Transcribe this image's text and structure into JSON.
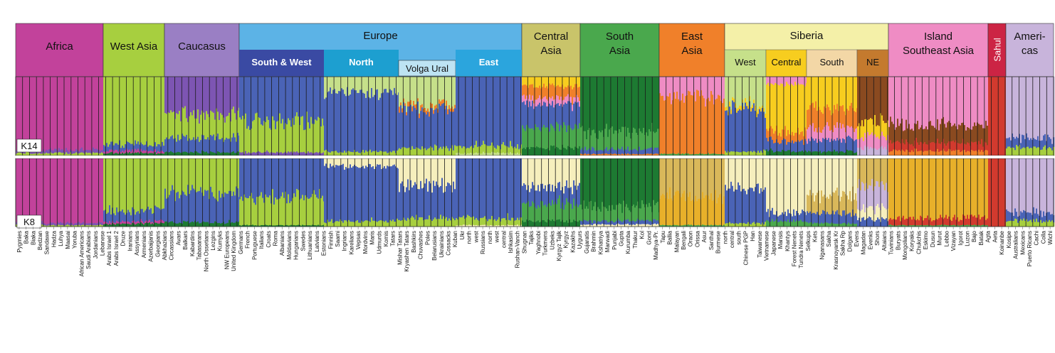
{
  "chart_data": {
    "type": "bar",
    "title": "",
    "stacked": true,
    "panels": [
      {
        "label": "K14",
        "k": 14
      },
      {
        "label": "K8",
        "k": 8
      }
    ],
    "colors": {
      "magenta": "#c2429b",
      "purple": "#7d55b3",
      "lime": "#a7cf3f",
      "blue": "#4a63b6",
      "dkgreen": "#1d7a32",
      "green": "#4aa84d",
      "pink": "#ef8cc4",
      "orange": "#f0802a",
      "yellow": "#f7cd1f",
      "cream": "#f6efbd",
      "paleGreen": "#c6e08a",
      "brown": "#8a4a20",
      "red": "#d23a2e",
      "lilac": "#c8b4db",
      "tan": "#d9b85a",
      "gold": "#e8b02a"
    },
    "groups": [
      {
        "name": "Africa",
        "color": "#c2429b",
        "sub": [],
        "populations": [
          "Pygmies",
          "Baka",
          "Biaka",
          "Bedzan",
          "Sandawe",
          "Hadza",
          "Luhya",
          "Maasai",
          "Yoruba"
        ]
      },
      {
        "name": "West Asia",
        "color": "#a7cf3f",
        "sub": [],
        "populations": [
          "African Americans",
          "Saudi Arabians",
          "Jordanians",
          "Lebanese",
          "Arabs Israel 1",
          "Arabs Israel 2",
          "Druze",
          "Iranians",
          "Assyrians",
          "Armenians"
        ]
      },
      {
        "name": "Caucasus",
        "color": "#9a7fc4",
        "sub": [],
        "populations": [
          "Azerbaijanis",
          "Georgians",
          "Abkhazians",
          "Circassians",
          "Avars",
          "Balkars",
          "Kabardins",
          "Tabasarans",
          "North Ossetians",
          "Lezgins",
          "Kumyks"
        ]
      },
      {
        "name": "Europe",
        "color": "#5cb3e6",
        "sub": [
          {
            "name": "South & West",
            "color": "#3a4aa3"
          },
          {
            "name": "North",
            "color": "#1d9fd0"
          },
          {
            "name": "Volga Ural",
            "color": "#bde3f3"
          },
          {
            "name": "East",
            "color": "#2ba5dd"
          }
        ],
        "populations": [
          "NW Europeans",
          "United Kingdom",
          "Germans",
          "French",
          "Portuguese",
          "Italians",
          "Croats",
          "Roma",
          "Albanians",
          "Moldavians",
          "Hungarians",
          "Swedes",
          "Lithuanians",
          "Latvians",
          "Estonians",
          "Finnish",
          "Saami",
          "Ingrians",
          "Karelians",
          "Vepsas",
          "Mordvins",
          "Maris",
          "Udmurds",
          "Komis",
          "Tatars",
          "Mishar Tatars",
          "Kryashen Tatars",
          "Bashkirs",
          "Chuvashes",
          "Poles",
          "Belarusians",
          "Ukrainians",
          "Cossacks",
          "Kuban",
          "Ukr",
          "north",
          "west",
          "Russians",
          "north",
          "west",
          "central"
        ]
      },
      {
        "name": "Central Asia",
        "color": "#c9c46a",
        "sub": [],
        "populations": [
          "Ishkasim",
          "Rushan-Vanch",
          "Shugnan",
          "Tajiks",
          "Yaghnobi",
          "Turkmens",
          "Uzbeks",
          "Kyrgyz Tajik",
          "Kyrgyz",
          "Kazakhs"
        ]
      },
      {
        "name": "South Asia",
        "color": "#4aa84d",
        "sub": [],
        "populations": [
          "Uygurs",
          "Gujaratis",
          "Brahmin",
          "Kshatriya",
          "Marwadi",
          "Punjabi",
          "Gupta",
          "Kurumba",
          "Thakur",
          "Kol",
          "Gond",
          "Madhya-Pr.",
          "Tapu",
          "Ballia",
          "Malayan",
          "Bengali",
          "Oraon",
          "Orissa",
          "Asur",
          "Santhal"
        ]
      },
      {
        "name": "East Asia",
        "color": "#f0802a",
        "sub": [],
        "populations": [
          "Burmese",
          "north",
          "central",
          "south",
          "Chinese PGP",
          "Han",
          "Taiwanese",
          "Vietnamese",
          "Japanese"
        ]
      },
      {
        "name": "Siberia",
        "color": "#f4f0a8",
        "sub": [
          {
            "name": "West",
            "color": "#c6e08a"
          },
          {
            "name": "Central",
            "color": "#f7cd1f"
          },
          {
            "name": "South",
            "color": "#f3d7a6"
          },
          {
            "name": "NE",
            "color": "#c47a2e"
          }
        ],
        "populations": [
          "Mansis",
          "Khantys",
          "Forest Nenets",
          "Tundra Nenets",
          "Selkups",
          "Kets",
          "Nganasans",
          "Sakha",
          "Krasnoyarsk Kr",
          "Sakha Rp",
          "Dolgans",
          "Evens",
          "Magadan",
          "Evenks",
          "Shors",
          "Altaians",
          "Tuvinians",
          "Buryats",
          "Mongolians",
          "Koryaks",
          "Chukchis",
          "Eskimo"
        ]
      },
      {
        "name": "Island Southeast Asia",
        "color": "#ef8cc4",
        "sub": [],
        "populations": [
          "Dusun",
          "Murut",
          "Lebbo",
          "Vizayan",
          "Igorot",
          "Luzon",
          "Bajo",
          "Batak",
          "Agta",
          "Aeta"
        ]
      },
      {
        "name": "Sahul",
        "color": "#cc2444",
        "sub": [],
        "populations": [
          "Koinanbe",
          "Kosipe",
          "Australians"
        ]
      },
      {
        "name": "Ameri- cas",
        "color": "#c8b4db",
        "sub": [],
        "populations": [
          "Mexicans",
          "Puerto Ricans",
          "Cachi",
          "Colla",
          "Wichi"
        ]
      }
    ],
    "axis_labels": [
      "Pygmies",
      "Baka",
      "Biaka",
      "Bedzan",
      "Sandawe",
      "Hadza",
      "Luhya",
      "Maasai",
      "Yoruba",
      "African Americans",
      "Saudi Arabians",
      "Jordanians",
      "Lebanese",
      "Arabs Israel 1",
      "Arabs Israel 2",
      "Druze",
      "Iranians",
      "Assyrians",
      "Armenians",
      "Azerbaijanis",
      "Georgians",
      "Abkhazians",
      "Circassians",
      "Avars",
      "Balkars",
      "Kabardins",
      "Tabasarans",
      "North Ossetians",
      "Lezgins",
      "Kumyks",
      "NW Europeans",
      "United Kingdom",
      "Germans",
      "French",
      "Portuguese",
      "Italians",
      "Croats",
      "Roma",
      "Albanians",
      "Moldavians",
      "Hungarians",
      "Swedes",
      "Lithuanians",
      "Latvians",
      "Estonians",
      "Finnish",
      "Saami",
      "Ingrians",
      "Karelians",
      "Vepsas",
      "Mordvins",
      "Maris",
      "Udmurds",
      "Komis",
      "Tatars",
      "Mishar Tatars",
      "Kryashen Tatars",
      "Bashkirs",
      "Chuvashes",
      "Poles",
      "Belarusians",
      "Ukrainians",
      "Cossacks",
      "Kuban",
      "Ukr",
      "north",
      "west",
      "Russians",
      "north",
      "west",
      "central",
      "Ishkasim",
      "Rushan-Vanch",
      "Shugnan",
      "Tajiks",
      "Yaghnobi",
      "Turkmens",
      "Uzbeks",
      "Kyrgyz Tajik",
      "Kyrgyz",
      "Kazakhs",
      "Uygurs",
      "Gujaratis",
      "Brahmin",
      "Kshatriya",
      "Marwadi",
      "Punjabi",
      "Gupta",
      "Kurumba",
      "Thakur",
      "Kol",
      "Gond",
      "Madhya-Pr.",
      "Tapu",
      "Ballia",
      "Malayan",
      "Bengali",
      "Oraon",
      "Orissa",
      "Asur",
      "Santhal",
      "Burmese",
      "north",
      "central",
      "south",
      "Chinese PGP",
      "Han",
      "Taiwanese",
      "Vietnamese",
      "Japanese",
      "Mansis",
      "Khantys",
      "Forest Nenets",
      "Tundra Nenets",
      "Selkups",
      "Kets",
      "Nganasans",
      "Sakha",
      "Krasnoyarsk Kr",
      "Sakha Rp",
      "Dolgans",
      "Evens",
      "Magadan",
      "Evenks",
      "Shors",
      "Altaians",
      "Tuvinians",
      "Buryats",
      "Mongolians",
      "Koryaks",
      "Chukchis",
      "Eskimo",
      "Dusun",
      "Murut",
      "Lebbo",
      "Vizayan",
      "Igorot",
      "Luzon",
      "Bajo",
      "Batak",
      "Agta",
      "Aeta",
      "Koinanbe",
      "Kosipe",
      "Australians",
      "Mexicans",
      "Puerto Ricans",
      "Cachi",
      "Colla",
      "Wichi"
    ],
    "segments": [
      {
        "group": "Africa",
        "k14": [
          [
            "magenta",
            0.93
          ],
          [
            "purple",
            0.04
          ],
          [
            "lime",
            0.03
          ]
        ],
        "k8": [
          [
            "magenta",
            0.95
          ],
          [
            "purple",
            0.03
          ],
          [
            "lime",
            0.02
          ]
        ]
      },
      {
        "group": "West Asia",
        "k14": [
          [
            "lime",
            0.86
          ],
          [
            "blue",
            0.08
          ],
          [
            "magenta",
            0.03
          ],
          [
            "dkgreen",
            0.03
          ]
        ],
        "k8": [
          [
            "lime",
            0.78
          ],
          [
            "blue",
            0.15
          ],
          [
            "magenta",
            0.03
          ],
          [
            "dkgreen",
            0.04
          ]
        ]
      },
      {
        "group": "Caucasus",
        "k14": [
          [
            "purple",
            0.48
          ],
          [
            "lime",
            0.3
          ],
          [
            "blue",
            0.18
          ],
          [
            "dkgreen",
            0.04
          ]
        ],
        "k8": [
          [
            "lime",
            0.52
          ],
          [
            "blue",
            0.42
          ],
          [
            "dkgreen",
            0.06
          ]
        ]
      },
      {
        "group": "Europe-SW",
        "k14": [
          [
            "blue",
            0.56
          ],
          [
            "lime",
            0.4
          ],
          [
            "purple",
            0.04
          ]
        ],
        "k8": [
          [
            "blue",
            0.58
          ],
          [
            "lime",
            0.4
          ],
          [
            "dkgreen",
            0.02
          ]
        ]
      },
      {
        "group": "Europe-N",
        "k14": [
          [
            "paleGreen",
            0.2
          ],
          [
            "blue",
            0.75
          ],
          [
            "lime",
            0.05
          ]
        ],
        "k8": [
          [
            "cream",
            0.12
          ],
          [
            "blue",
            0.8
          ],
          [
            "lime",
            0.08
          ]
        ]
      },
      {
        "group": "Europe-VU",
        "k14": [
          [
            "paleGreen",
            0.38
          ],
          [
            "orange",
            0.05
          ],
          [
            "blue",
            0.48
          ],
          [
            "lime",
            0.09
          ]
        ],
        "k8": [
          [
            "cream",
            0.4
          ],
          [
            "blue",
            0.48
          ],
          [
            "lime",
            0.12
          ]
        ]
      },
      {
        "group": "Europe-E",
        "k14": [
          [
            "blue",
            0.88
          ],
          [
            "lime",
            0.09
          ],
          [
            "paleGreen",
            0.03
          ]
        ],
        "k8": [
          [
            "blue",
            0.88
          ],
          [
            "lime",
            0.1
          ],
          [
            "cream",
            0.02
          ]
        ]
      },
      {
        "group": "Central Asia",
        "k14": [
          [
            "yellow",
            0.12
          ],
          [
            "orange",
            0.15
          ],
          [
            "pink",
            0.08
          ],
          [
            "blue",
            0.3
          ],
          [
            "green",
            0.25
          ],
          [
            "dkgreen",
            0.1
          ]
        ],
        "k8": [
          [
            "cream",
            0.42
          ],
          [
            "blue",
            0.25
          ],
          [
            "green",
            0.25
          ],
          [
            "dkgreen",
            0.08
          ]
        ]
      },
      {
        "group": "South Asia",
        "k14": [
          [
            "dkgreen",
            0.7
          ],
          [
            "green",
            0.22
          ],
          [
            "blue",
            0.06
          ],
          [
            "orange",
            0.02
          ]
        ],
        "k8": [
          [
            "dkgreen",
            0.72
          ],
          [
            "green",
            0.2
          ],
          [
            "blue",
            0.05
          ],
          [
            "cream",
            0.03
          ]
        ]
      },
      {
        "group": "East Asia",
        "k14": [
          [
            "pink",
            0.25
          ],
          [
            "orange",
            0.73
          ],
          [
            "green",
            0.02
          ]
        ],
        "k8": [
          [
            "tan",
            0.55
          ],
          [
            "gold",
            0.43
          ],
          [
            "green",
            0.02
          ]
        ]
      },
      {
        "group": "Siberia-W",
        "k14": [
          [
            "paleGreen",
            0.35
          ],
          [
            "yellow",
            0.05
          ],
          [
            "blue",
            0.55
          ],
          [
            "lime",
            0.05
          ]
        ],
        "k8": [
          [
            "cream",
            0.45
          ],
          [
            "blue",
            0.5
          ],
          [
            "lime",
            0.05
          ]
        ]
      },
      {
        "group": "Siberia-C",
        "k14": [
          [
            "pink",
            0.1
          ],
          [
            "yellow",
            0.6
          ],
          [
            "orange",
            0.12
          ],
          [
            "blue",
            0.12
          ],
          [
            "dkgreen",
            0.06
          ]
        ],
        "k8": [
          [
            "cream",
            0.8
          ],
          [
            "blue",
            0.12
          ],
          [
            "green",
            0.08
          ]
        ]
      },
      {
        "group": "Siberia-S",
        "k14": [
          [
            "yellow",
            0.4
          ],
          [
            "orange",
            0.25
          ],
          [
            "pink",
            0.15
          ],
          [
            "blue",
            0.15
          ],
          [
            "dkgreen",
            0.05
          ]
        ],
        "k8": [
          [
            "cream",
            0.55
          ],
          [
            "tan",
            0.25
          ],
          [
            "blue",
            0.15
          ],
          [
            "green",
            0.05
          ]
        ]
      },
      {
        "group": "Siberia-NE",
        "k14": [
          [
            "brown",
            0.55
          ],
          [
            "yellow",
            0.2
          ],
          [
            "pink",
            0.15
          ],
          [
            "lilac",
            0.1
          ]
        ],
        "k8": [
          [
            "tan",
            0.4
          ],
          [
            "lilac",
            0.35
          ],
          [
            "cream",
            0.15
          ],
          [
            "blue",
            0.1
          ]
        ]
      },
      {
        "group": "Island Southeast Asia",
        "k14": [
          [
            "pink",
            0.62
          ],
          [
            "brown",
            0.22
          ],
          [
            "red",
            0.1
          ],
          [
            "orange",
            0.06
          ]
        ],
        "k8": [
          [
            "gold",
            0.88
          ],
          [
            "red",
            0.1
          ],
          [
            "green",
            0.02
          ]
        ]
      },
      {
        "group": "Sahul",
        "k14": [
          [
            "red",
            1.0
          ]
        ],
        "k8": [
          [
            "red",
            1.0
          ]
        ]
      },
      {
        "group": "Americas",
        "k14": [
          [
            "lilac",
            0.78
          ],
          [
            "blue",
            0.12
          ],
          [
            "lime",
            0.1
          ]
        ],
        "k8": [
          [
            "lilac",
            0.8
          ],
          [
            "blue",
            0.12
          ],
          [
            "lime",
            0.08
          ]
        ]
      }
    ]
  }
}
